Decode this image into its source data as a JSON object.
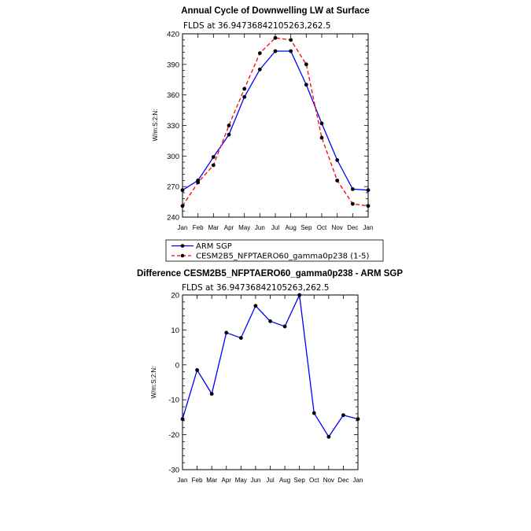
{
  "chart_data": [
    {
      "type": "line",
      "title": "Annual Cycle of Downwelling LW at Surface",
      "subtitle": "FLDS at 36.94736842105263,262.5",
      "ylabel": "W/m:S:2:N:",
      "categories": [
        "Jan",
        "Feb",
        "Mar",
        "Apr",
        "May",
        "Jun",
        "Jul",
        "Aug",
        "Sep",
        "Oct",
        "Nov",
        "Dec",
        "Jan"
      ],
      "ylim": [
        240,
        420
      ],
      "yticks": [
        240,
        270,
        300,
        330,
        360,
        390,
        420
      ],
      "series": [
        {
          "name": "ARM SGP",
          "color": "#0000ff",
          "dash": "solid",
          "values": [
            266.5,
            276,
            299,
            321,
            358,
            385,
            403,
            403,
            370,
            332,
            296,
            267.5,
            266.5
          ]
        },
        {
          "name": "CESM2B5_NFPTAERO60_gamma0p238 (1-5)",
          "color": "#ff0000",
          "dash": "dashed",
          "values": [
            251,
            274,
            291,
            330,
            366,
            401,
            416,
            414,
            390,
            318,
            276,
            253,
            251
          ]
        }
      ]
    },
    {
      "type": "line",
      "title": "Difference CESM2B5_NFPTAERO60_gamma0p238 - ARM SGP",
      "subtitle": "FLDS at 36.94736842105263,262.5",
      "ylabel": "W/m:S:2:N:",
      "categories": [
        "Jan",
        "Feb",
        "Mar",
        "Apr",
        "May",
        "Jun",
        "Jul",
        "Aug",
        "Sep",
        "Oct",
        "Nov",
        "Dec",
        "Jan"
      ],
      "ylim": [
        -30,
        20
      ],
      "yticks": [
        -30,
        -20,
        -10,
        0,
        10,
        20
      ],
      "series": [
        {
          "name": "Difference",
          "color": "#0000ff",
          "dash": "solid",
          "values": [
            -15.5,
            -1.5,
            -8.3,
            9.2,
            7.7,
            16.9,
            12.5,
            11.0,
            20.0,
            -13.8,
            -20.6,
            -14.4,
            -15.5
          ]
        }
      ]
    }
  ]
}
